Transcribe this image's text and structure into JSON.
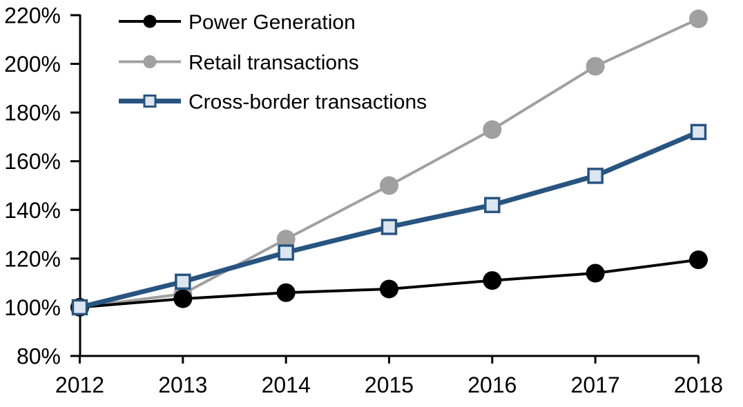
{
  "chart_data": {
    "type": "line",
    "title": "",
    "x": [
      2012,
      2013,
      2014,
      2015,
      2016,
      2017,
      2018
    ],
    "x_labels": [
      "2012",
      "2013",
      "2014",
      "2015",
      "2016",
      "2017",
      "2018"
    ],
    "series": [
      {
        "name": "Power Generation",
        "values": [
          100,
          103.5,
          106,
          107.5,
          111,
          114,
          119.5
        ],
        "color": "#000000",
        "marker": "circle",
        "marker_fill": "#000000",
        "line_width": 4,
        "z": 2
      },
      {
        "name": "Retail transactions",
        "values": [
          100,
          105.5,
          128,
          150,
          173,
          199,
          218.5
        ],
        "color": "#A0A0A0",
        "marker": "circle",
        "marker_fill": "#A0A0A0",
        "line_width": 4,
        "z": 1
      },
      {
        "name": "Cross-border transactions",
        "values": [
          100,
          110.5,
          122.5,
          133,
          142,
          154,
          172
        ],
        "color": "#285480",
        "marker": "square",
        "marker_fill": "#DCE6F1",
        "line_width": 7,
        "z": 3
      }
    ],
    "ylim": [
      80,
      220
    ],
    "ytick_step": 20,
    "ytick_labels": [
      "80%",
      "100%",
      "120%",
      "140%",
      "160%",
      "180%",
      "200%",
      "220%"
    ],
    "ytick_format": "percent",
    "legend_position": "top-left",
    "legend_order": [
      "Power Generation",
      "Retail transactions",
      "Cross-border transactions"
    ],
    "grid": false,
    "axis_color": "#000000"
  }
}
